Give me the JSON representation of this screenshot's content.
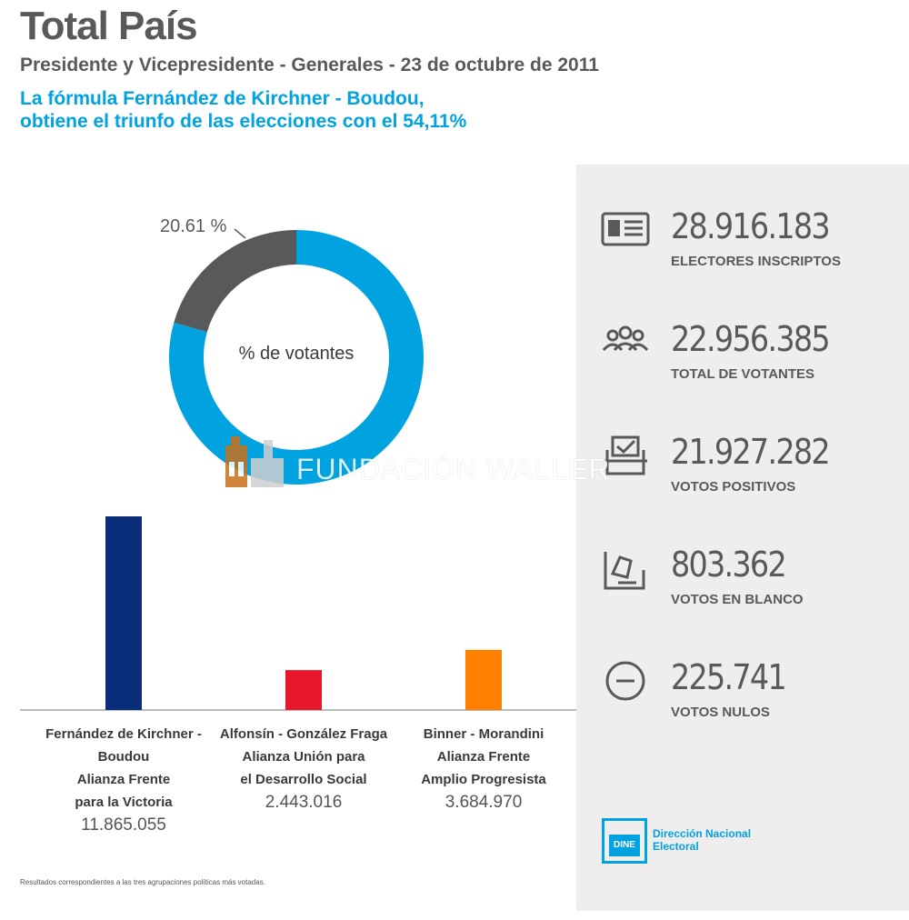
{
  "header": {
    "title": "Total País",
    "subtitle": "Presidente y Vicepresidente - Generales - 23 de octubre de 2011",
    "headline_line1": "La fórmula Fernández de Kirchner - Boudou,",
    "headline_line2": "obtiene el triunfo de las elecciones con el 54,11%"
  },
  "colors": {
    "accent": "#00a3e0",
    "text": "#58595b",
    "panel": "#efeded",
    "donut_gray": "#58595b",
    "bar_fpv": "#0a2d7a",
    "bar_udeso": "#e8172b",
    "bar_fap": "#ff7f00"
  },
  "chart_data": [
    {
      "type": "pie",
      "center_label": "% de votantes",
      "slices": [
        {
          "label": "20.61 %",
          "value": 20.61,
          "color": "#58595b"
        },
        {
          "value": 79.39,
          "color": "#00a3e0"
        }
      ]
    },
    {
      "type": "bar",
      "categories": [
        "Fernández de Kirchner - Boudou Alianza Frente para la Victoria",
        "Alfonsín - González Fraga Alianza Unión para el Desarrollo Social",
        "Binner - Morandini Alianza Frente Amplio Progresista"
      ],
      "values": [
        11865055,
        2443016,
        3684970
      ],
      "colors": [
        "#0a2d7a",
        "#e8172b",
        "#ff7f00"
      ],
      "value_labels": [
        "11.865.055",
        "2.443.016",
        "3.684.970"
      ],
      "ylim": [
        0,
        12500000
      ]
    }
  ],
  "candidates": [
    {
      "lines": [
        "Fernández de Kirchner -",
        "Boudou",
        "Alianza Frente",
        "para la Victoria"
      ],
      "votes": "11.865.055"
    },
    {
      "lines": [
        "Alfonsín - González Fraga",
        "Alianza Unión para",
        "el Desarrollo Social"
      ],
      "votes": "2.443.016"
    },
    {
      "lines": [
        "Binner - Morandini",
        "Alianza Frente",
        "Amplio Progresista"
      ],
      "votes": "3.684.970"
    }
  ],
  "stats": [
    {
      "value": "28.916.183",
      "label": "ELECTORES INSCRIPTOS",
      "icon": "id-card-icon"
    },
    {
      "value": "22.956.385",
      "label": "TOTAL DE VOTANTES",
      "icon": "people-icon"
    },
    {
      "value": "21.927.282",
      "label": "VOTOS POSITIVOS",
      "icon": "ballot-check-icon"
    },
    {
      "value": "803.362",
      "label": "VOTOS EN BLANCO",
      "icon": "ballot-box-icon"
    },
    {
      "value": "225.741",
      "label": "VOTOS NULOS",
      "icon": "minus-circle-icon"
    }
  ],
  "footnote": "Resultados correspondientes a las tres agrupaciones políticas más votadas.",
  "logo": {
    "box": "DINE",
    "line1": "Dirección Nacional",
    "line2": "Electoral"
  },
  "watermark": {
    "text": "FUNDACIÓN WALLER"
  }
}
